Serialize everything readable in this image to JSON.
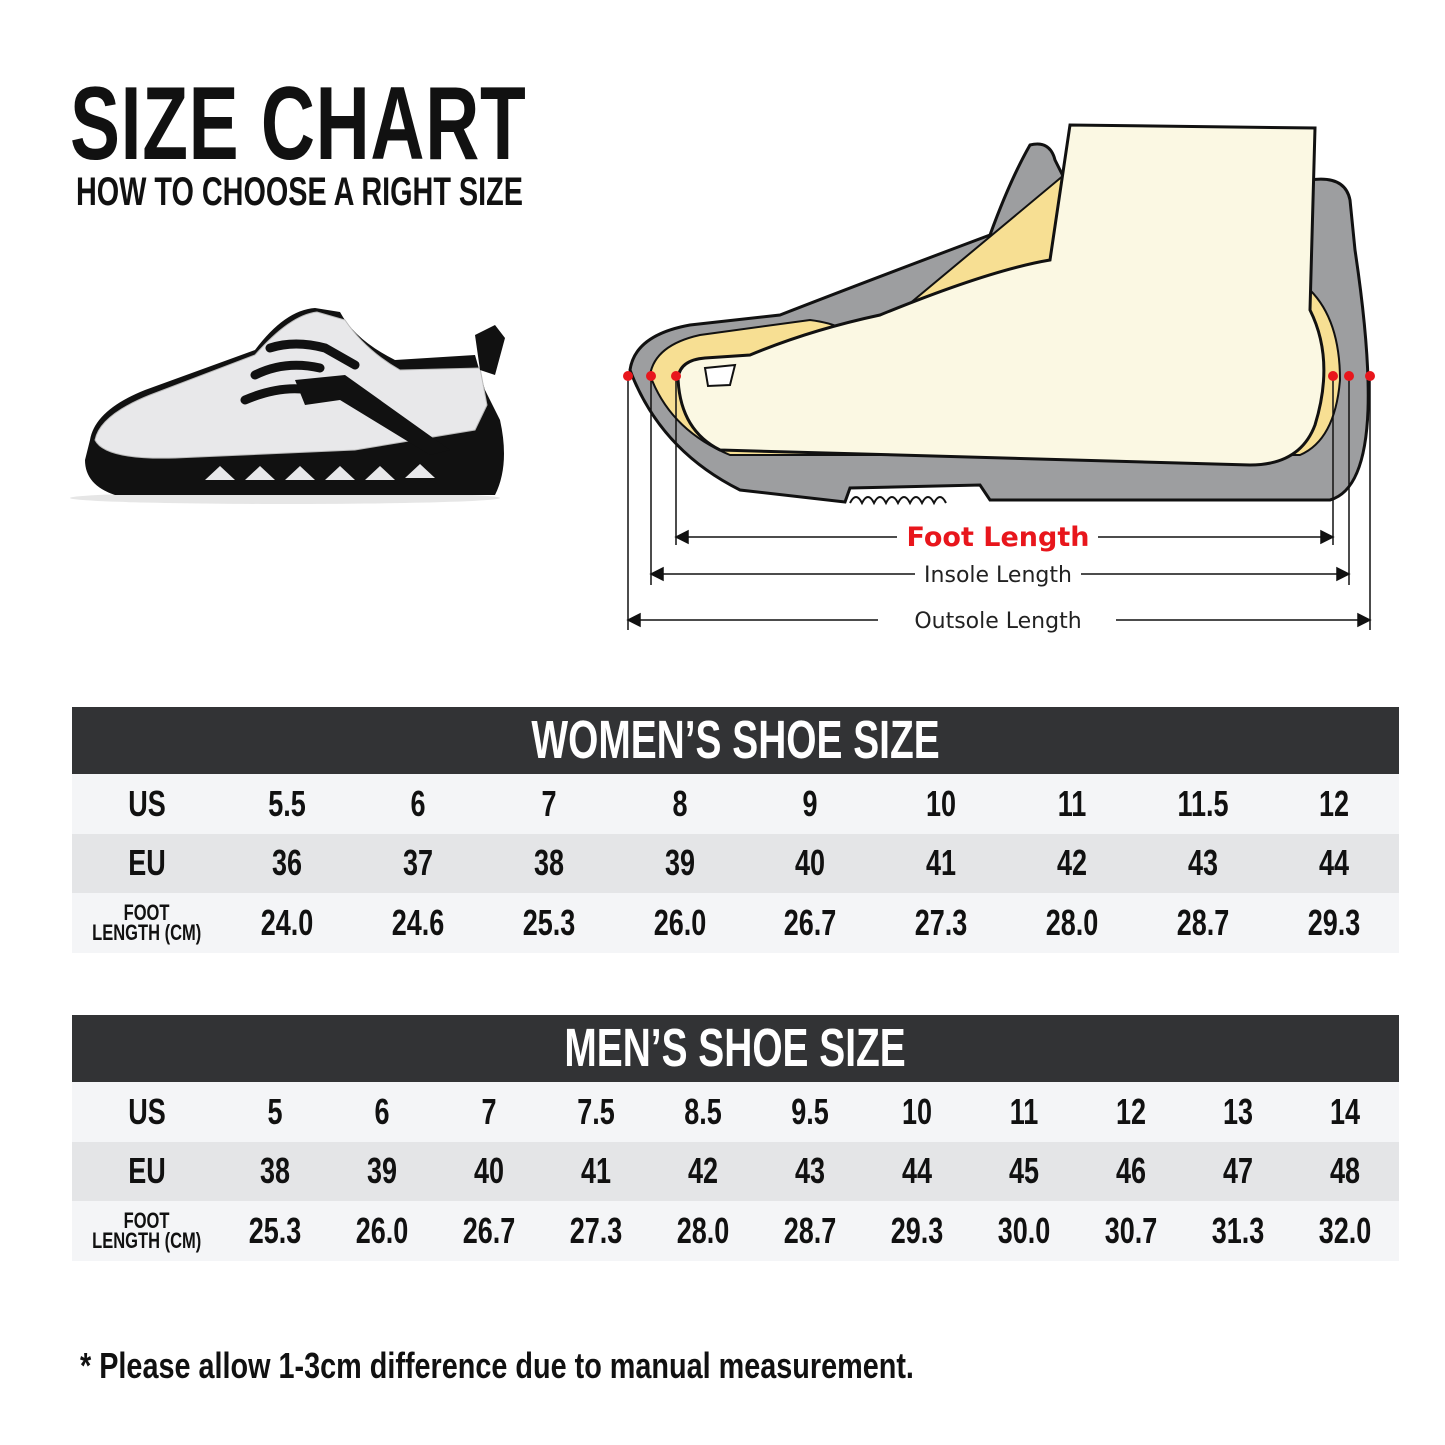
{
  "header": {
    "title": "SIZE CHART",
    "subtitle": "HOW TO CHOOSE A RIGHT SIZE"
  },
  "diagram": {
    "foot_length": "Foot Length",
    "insole_length": "Insole Length",
    "outsole_length": "Outsole Length",
    "colors": {
      "foot_length": "#e8161c",
      "marker": "#e8161c",
      "outsole": "#9d9ea0",
      "insole": "#f7df93",
      "foot": "#fbf8e3"
    }
  },
  "women": {
    "title": "WOMEN’S SHOE SIZE",
    "rows": [
      {
        "label": "US",
        "values": [
          "5.5",
          "6",
          "7",
          "8",
          "9",
          "10",
          "11",
          "11.5",
          "12"
        ]
      },
      {
        "label": "EU",
        "values": [
          "36",
          "37",
          "38",
          "39",
          "40",
          "41",
          "42",
          "43",
          "44"
        ]
      },
      {
        "label": "FOOT LENGTH (CM)",
        "label_line1": "FOOT",
        "label_line2": "LENGTH (CM)",
        "values": [
          "24.0",
          "24.6",
          "25.3",
          "26.0",
          "26.7",
          "27.3",
          "28.0",
          "28.7",
          "29.3"
        ]
      }
    ]
  },
  "men": {
    "title": "MEN’S SHOE SIZE",
    "rows": [
      {
        "label": "US",
        "values": [
          "5",
          "6",
          "7",
          "7.5",
          "8.5",
          "9.5",
          "10",
          "11",
          "12",
          "13",
          "14"
        ]
      },
      {
        "label": "EU",
        "values": [
          "38",
          "39",
          "40",
          "41",
          "42",
          "43",
          "44",
          "45",
          "46",
          "47",
          "48"
        ]
      },
      {
        "label": "FOOT LENGTH (CM)",
        "label_line1": "FOOT",
        "label_line2": "LENGTH (CM)",
        "values": [
          "25.3",
          "26.0",
          "26.7",
          "27.3",
          "28.0",
          "28.7",
          "29.3",
          "30.0",
          "30.7",
          "31.3",
          "32.0"
        ]
      }
    ]
  },
  "footnote": "* Please allow 1-3cm difference due to manual measurement."
}
